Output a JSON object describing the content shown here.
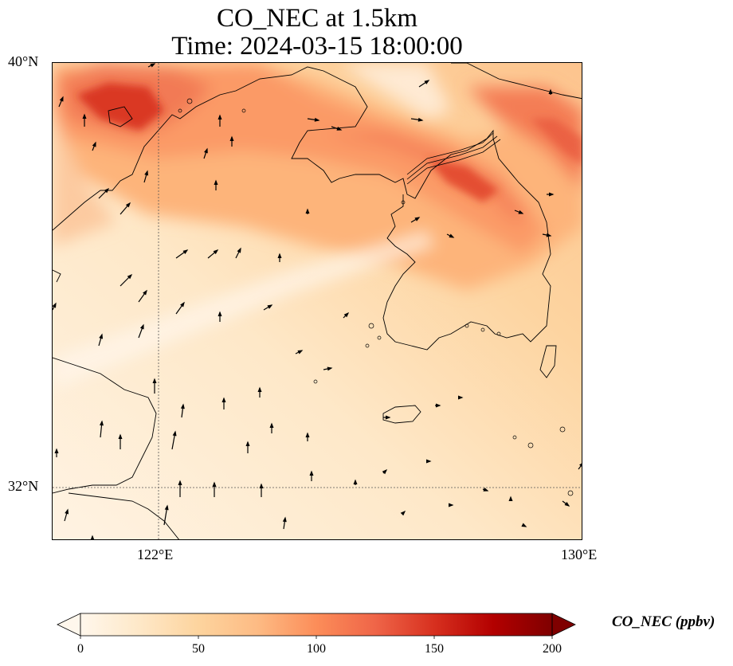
{
  "figure": {
    "title_line1": "CO_NEC at 1.5km",
    "title_line2": "Time: 2024-03-15 18:00:00"
  },
  "map": {
    "lat_labels": [
      "40°N",
      "32°N"
    ],
    "lon_labels": [
      "122°E",
      "130°E"
    ],
    "extent": {
      "lon_min": 120,
      "lon_max": 130,
      "lat_min": 31,
      "lat_max": 40
    }
  },
  "colorbar": {
    "label": "CO_NEC (ppbv)",
    "ticks": [
      "0",
      "50",
      "100",
      "150",
      "200"
    ],
    "range": [
      0,
      200
    ],
    "colormap": "OrRd",
    "colors": [
      "#fff7ec",
      "#fee8c8",
      "#fdd49e",
      "#fdbb84",
      "#fc8d59",
      "#ef6548",
      "#d7301f",
      "#b30000",
      "#7f0000"
    ]
  }
}
